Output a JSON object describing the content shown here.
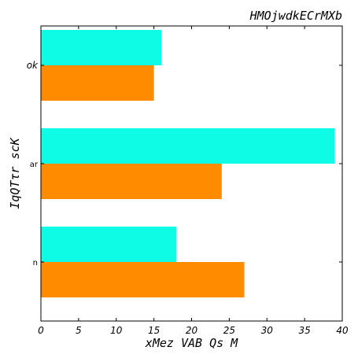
{
  "chart_data": {
    "type": "bar",
    "orientation": "horizontal",
    "title": "HMOjwdkECrMXb",
    "xlabel": "xMez VAB Qs M",
    "ylabel": "IqQTτr scK",
    "categories": [
      "n",
      "ar",
      "ok"
    ],
    "category_label_italic": [
      false,
      false,
      true
    ],
    "series": [
      {
        "values": [
          27,
          24,
          15
        ],
        "color": "#ff8c00"
      },
      {
        "values": [
          18,
          39,
          16
        ],
        "color": "#0efbe5"
      }
    ],
    "xlim": [
      0,
      40
    ],
    "xticks": [
      0,
      5,
      10,
      15,
      20,
      25,
      30,
      35,
      40
    ],
    "grid": false,
    "legend": "none"
  }
}
